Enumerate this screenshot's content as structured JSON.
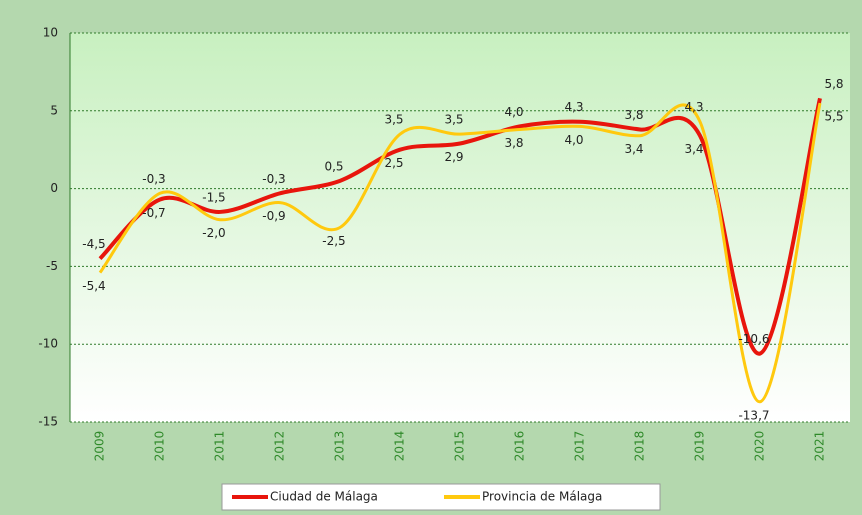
{
  "chart_data": {
    "type": "line",
    "categories": [
      "2009",
      "2010",
      "2011",
      "2012",
      "2013",
      "2014",
      "2015",
      "2016",
      "2017",
      "2018",
      "2019",
      "2020",
      "2021"
    ],
    "series": [
      {
        "name": "Ciudad de Málaga",
        "color": "#e8150c",
        "values": [
          -4.5,
          -0.7,
          -1.5,
          -0.3,
          0.5,
          2.5,
          2.9,
          4.0,
          4.3,
          3.8,
          3.4,
          -10.6,
          5.8
        ],
        "value_labels": [
          "-4,5",
          "-0,7",
          "-1,5",
          "-0,3",
          "0,5",
          "2,5",
          "2,9",
          "4,0",
          "4,3",
          "3,8",
          "3,4",
          "-10,6",
          "5,8"
        ]
      },
      {
        "name": "Provincia de Málaga",
        "color": "#ffc90e",
        "values": [
          -5.4,
          -0.3,
          -2.0,
          -0.9,
          -2.5,
          3.5,
          3.5,
          3.8,
          4.0,
          3.4,
          4.3,
          -13.7,
          5.5
        ],
        "value_labels": [
          "-5,4",
          "-0,3",
          "-2,0",
          "-0,9",
          "-2,5",
          "3,5",
          "3,5",
          "3,8",
          "4,0",
          "3,4",
          "4,3",
          "-13,7",
          "5,5"
        ]
      }
    ],
    "ylim": [
      -15,
      10
    ],
    "yticks": [
      -15,
      -10,
      -5,
      0,
      5,
      10
    ],
    "grid": true,
    "legend": "bottom"
  }
}
